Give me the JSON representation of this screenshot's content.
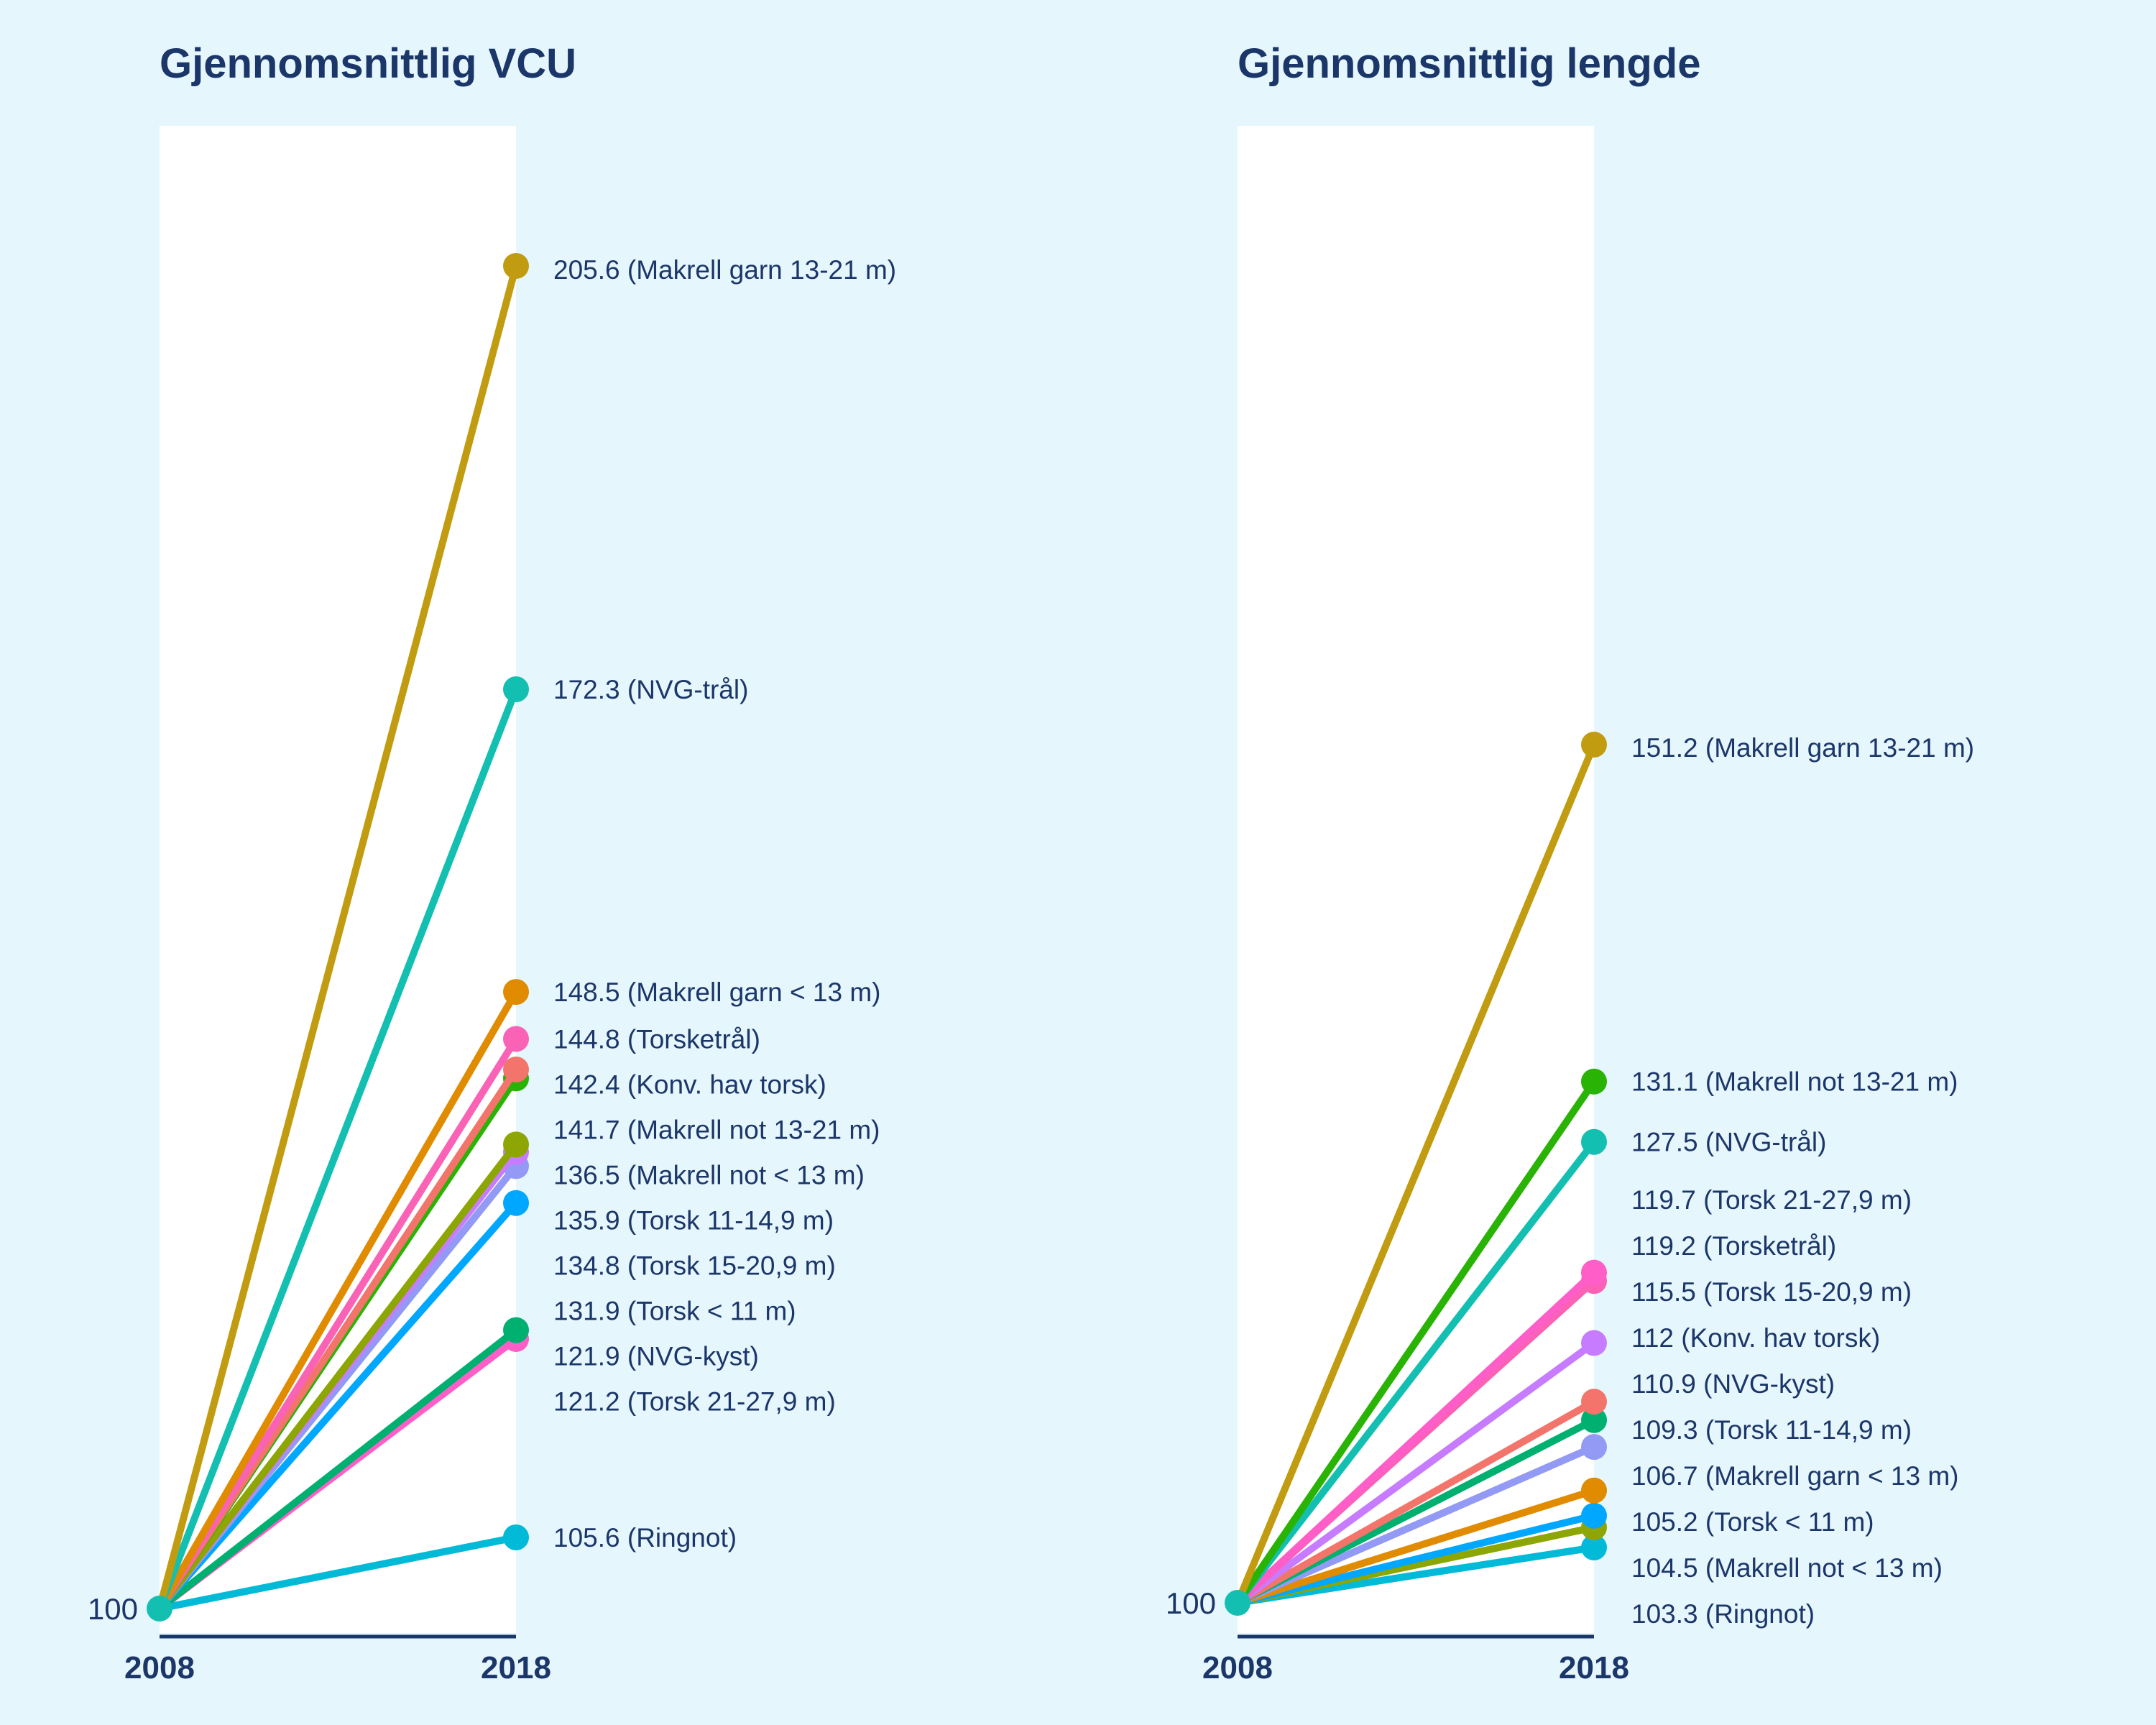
{
  "chart_data": [
    {
      "type": "line",
      "title": "Gjennomsnittlig VCU",
      "x": [
        "2008",
        "2018"
      ],
      "baseline_label": "100",
      "ylim": [
        100,
        205.6
      ],
      "series": [
        {
          "name": "Makrell garn 13-21 m",
          "values": [
            100,
            205.6
          ],
          "color": "#c19c10",
          "label": "205.6 (Makrell garn 13-21 m)"
        },
        {
          "name": "NVG-trål",
          "values": [
            100,
            172.3
          ],
          "color": "#12bfb0",
          "label": "172.3 (NVG-trål)"
        },
        {
          "name": "Makrell garn < 13 m",
          "values": [
            100,
            148.5
          ],
          "color": "#e08b00",
          "label": "148.5 (Makrell garn < 13 m)"
        },
        {
          "name": "Torsketrål",
          "values": [
            100,
            144.8
          ],
          "color": "#fa62b6",
          "label": "144.8 (Torsketrål)"
        },
        {
          "name": "Konv. hav torsk",
          "values": [
            100,
            142.4
          ],
          "color": "#f3746a",
          "label": "142.4 (Konv. hav torsk)"
        },
        {
          "name": "Makrell not 13-21 m",
          "values": [
            100,
            141.7
          ],
          "color": "#29b304",
          "label": "141.7 (Makrell not 13-21 m)"
        },
        {
          "name": "Makrell not < 13 m",
          "values": [
            100,
            136.5
          ],
          "color": "#8da603",
          "label": "136.5 (Makrell not < 13 m)"
        },
        {
          "name": "Torsk 11-14,9 m",
          "values": [
            100,
            135.9
          ],
          "color": "#c77cff",
          "label": "135.9 (Torsk 11-14,9 m)"
        },
        {
          "name": "Torsk 15-20,9 m",
          "values": [
            100,
            134.8
          ],
          "color": "#929af5",
          "label": "134.8 (Torsk 15-20,9 m)"
        },
        {
          "name": "Torsk < 11 m",
          "values": [
            100,
            131.9
          ],
          "color": "#00a7ff",
          "label": "131.9 (Torsk < 11 m)"
        },
        {
          "name": "NVG-kyst",
          "values": [
            100,
            121.9
          ],
          "color": "#00b070",
          "label": "121.9 (NVG-kyst)"
        },
        {
          "name": "Torsk 21-27,9 m",
          "values": [
            100,
            121.2
          ],
          "color": "#ff5dc8",
          "label": "121.2 (Torsk 21-27,9 m)"
        },
        {
          "name": "Ringnot",
          "values": [
            100,
            105.6
          ],
          "color": "#00bad8",
          "label": "105.6 (Ringnot)"
        }
      ]
    },
    {
      "type": "line",
      "title": "Gjennomsnittlig lengde",
      "x": [
        "2008",
        "2018"
      ],
      "baseline_label": "100",
      "ylim": [
        100,
        151.2
      ],
      "series": [
        {
          "name": "Makrell garn 13-21 m",
          "values": [
            100,
            151.2
          ],
          "color": "#c19c10",
          "label": "151.2 (Makrell garn 13-21 m)"
        },
        {
          "name": "Makrell not 13-21 m",
          "values": [
            100,
            131.1
          ],
          "color": "#29b304",
          "label": "131.1 (Makrell not 13-21 m)"
        },
        {
          "name": "NVG-trål",
          "values": [
            100,
            127.5
          ],
          "color": "#12bfb0",
          "label": "127.5 (NVG-trål)"
        },
        {
          "name": "Torsk 21-27,9 m",
          "values": [
            100,
            119.7
          ],
          "color": "#ff5dc8",
          "label": "119.7 (Torsk 21-27,9 m)"
        },
        {
          "name": "Torsketrål",
          "values": [
            100,
            119.2
          ],
          "color": "#fa62b6",
          "label": "119.2 (Torsketrål)"
        },
        {
          "name": "Torsk 15-20,9 m",
          "values": [
            100,
            115.5
          ],
          "color": "#c77cff",
          "label": "115.5 (Torsk 15-20,9 m)"
        },
        {
          "name": "Konv. hav torsk",
          "values": [
            100,
            112
          ],
          "color": "#f3746a",
          "label": "112 (Konv. hav torsk)"
        },
        {
          "name": "NVG-kyst",
          "values": [
            100,
            110.9
          ],
          "color": "#00b070",
          "label": "110.9 (NVG-kyst)"
        },
        {
          "name": "Torsk 11-14,9 m",
          "values": [
            100,
            109.3
          ],
          "color": "#929af5",
          "label": "109.3 (Torsk 11-14,9 m)"
        },
        {
          "name": "Makrell garn < 13 m",
          "values": [
            100,
            106.7
          ],
          "color": "#e08b00",
          "label": "106.7 (Makrell garn < 13 m)"
        },
        {
          "name": "Torsk < 11 m",
          "values": [
            100,
            105.2
          ],
          "color": "#00a7ff",
          "label": "105.2 (Torsk < 11 m)"
        },
        {
          "name": "Makrell not < 13 m",
          "values": [
            100,
            104.5
          ],
          "color": "#8da603",
          "label": "104.5 (Makrell not < 13 m)"
        },
        {
          "name": "Ringnot",
          "values": [
            100,
            103.3
          ],
          "color": "#00bad8",
          "label": "103.3 (Ringnot)"
        }
      ]
    }
  ]
}
